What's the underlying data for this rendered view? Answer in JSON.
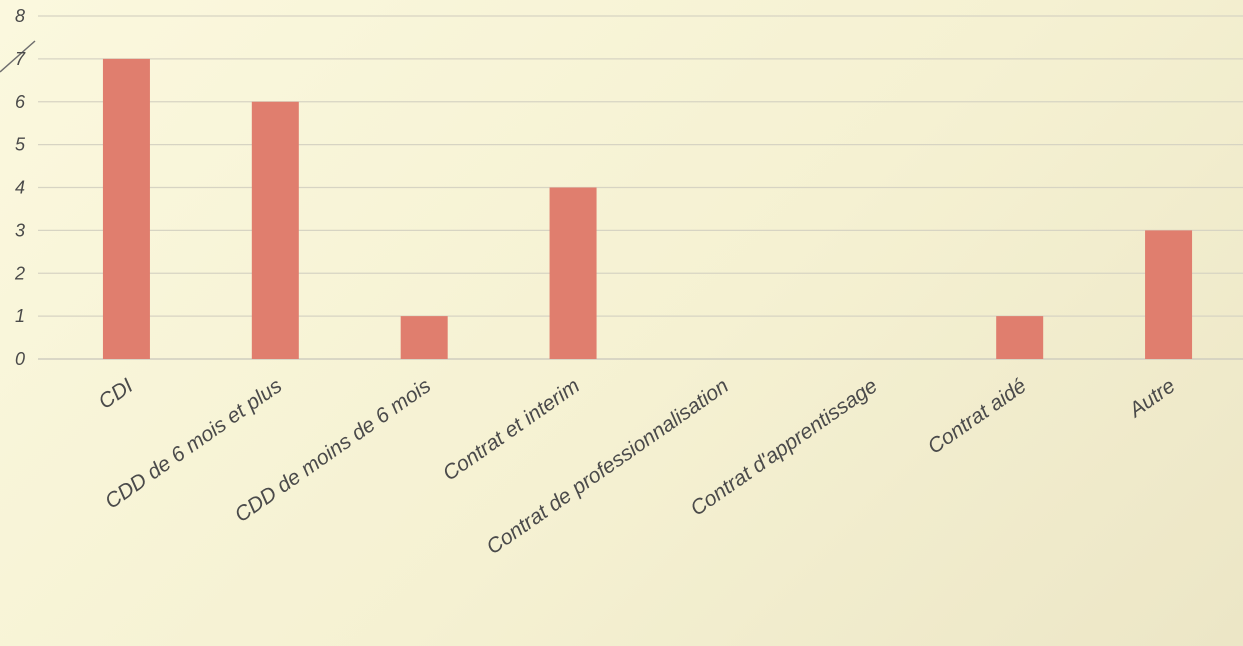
{
  "chart_data": {
    "type": "bar",
    "categories": [
      "CDI",
      "CDD de 6 mois et plus",
      "CDD de moins de 6 mois",
      "Contrat et interim",
      "Contrat de professionnalisation",
      "Contrat d'apprentissage",
      "Contrat aidé",
      "Autre"
    ],
    "values": [
      7,
      6,
      1,
      4,
      0,
      0,
      1,
      3
    ],
    "yticks": [
      "0",
      "1",
      "2",
      "3",
      "4",
      "5",
      "6",
      "7",
      "8"
    ],
    "ylim": [
      0,
      8
    ],
    "grid": true,
    "legend": "none",
    "bar_color": "#e07e6e",
    "grid_color": "#d7d4c3",
    "axis_color": "#cfcdbf",
    "text_color": "#4a4a4a",
    "decor_color": "#6e6e6e"
  }
}
